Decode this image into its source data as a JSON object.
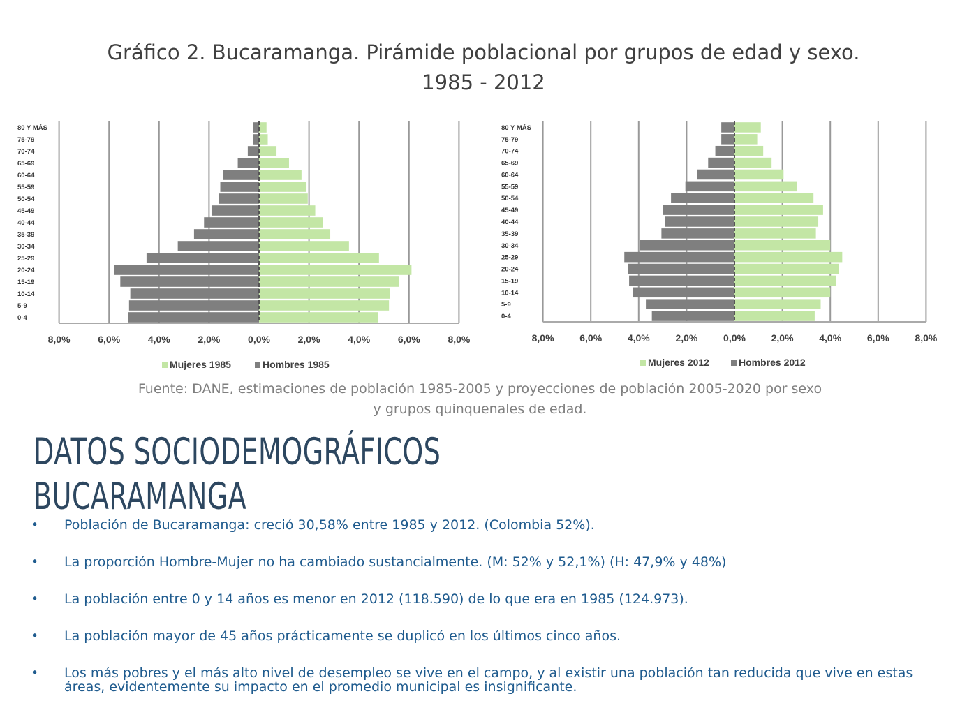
{
  "figure": {
    "title_line1": "Gráfico 2. Bucaramanga. Pirámide poblacional por grupos de edad y sexo.",
    "title_line2": "1985 - 2012",
    "source_line1": "Fuente: DANE, estimaciones de población 1985-2005  y proyecciones de población 2005-2020 por sexo",
    "source_line2": "y grupos quinquenales de edad."
  },
  "colors": {
    "female": "#c3e6a5",
    "male": "#7f7f7f",
    "grid": "#999999"
  },
  "chart_data": [
    {
      "type": "bar",
      "orientation": "horizontal-pyramid",
      "categories": [
        "80 Y MÁS",
        "75-79",
        "70-74",
        "65-69",
        "60-64",
        "55-59",
        "50-54",
        "45-49",
        "40-44",
        "35-39",
        "30-34",
        "25-29",
        "20-24",
        "15-19",
        "10-14",
        "5-9",
        "0-4"
      ],
      "tick_labels": [
        "8,0%",
        "6,0%",
        "4,0%",
        "2,0%",
        "0,0%",
        "2,0%",
        "4,0%",
        "6,0%",
        "8,0%"
      ],
      "xlim": [
        -8,
        8
      ],
      "legend_position": "bottom",
      "series": [
        {
          "name": "Mujeres 1985",
          "side": "right",
          "values": [
            0.3,
            0.35,
            0.7,
            1.2,
            1.7,
            1.9,
            1.95,
            2.25,
            2.55,
            2.85,
            3.6,
            4.8,
            6.1,
            5.6,
            5.25,
            5.2,
            4.75
          ]
        },
        {
          "name": "Hombres 1985",
          "side": "left",
          "values": [
            0.25,
            0.25,
            0.45,
            0.85,
            1.45,
            1.55,
            1.6,
            1.9,
            2.2,
            2.6,
            3.25,
            4.5,
            5.8,
            5.55,
            5.15,
            5.2,
            5.25
          ]
        }
      ]
    },
    {
      "type": "bar",
      "orientation": "horizontal-pyramid",
      "categories": [
        "80 Y MÁS",
        "75-79",
        "70-74",
        "65-69",
        "60-64",
        "55-59",
        "50-54",
        "45-49",
        "40-44",
        "35-39",
        "30-34",
        "25-29",
        "20-24",
        "15-19",
        "10-14",
        "5-9",
        "0-4"
      ],
      "tick_labels": [
        "8,0%",
        "6,0%",
        "4,0%",
        "2,0%",
        "0,0%",
        "2,0%",
        "4,0%",
        "6,0%",
        "8,0%"
      ],
      "xlim": [
        -8,
        8
      ],
      "legend_position": "bottom",
      "series": [
        {
          "name": "Mujeres 2012",
          "side": "right",
          "values": [
            1.1,
            0.95,
            1.2,
            1.55,
            2.05,
            2.6,
            3.3,
            3.7,
            3.5,
            3.4,
            4.0,
            4.5,
            4.35,
            4.25,
            4.0,
            3.6,
            3.35
          ]
        },
        {
          "name": "Hombres 2012",
          "side": "left",
          "values": [
            0.55,
            0.55,
            0.8,
            1.1,
            1.55,
            2.05,
            2.65,
            3.0,
            2.9,
            3.05,
            3.95,
            4.6,
            4.45,
            4.4,
            4.25,
            3.7,
            3.45
          ]
        }
      ]
    }
  ],
  "slide": {
    "headline_line1": "DATOS SOCIODEMOGRÁFICOS",
    "headline_line2": "BUCARAMANGA",
    "bullet_symbol": "•",
    "bullets": [
      "Población de Bucaramanga: creció 30,58% entre 1985 y 2012. (Colombia 52%).",
      "La proporción Hombre-Mujer no ha cambiado sustancialmente. (M: 52% y 52,1%) (H: 47,9% y 48%)",
      "La población entre 0 y 14 años es menor en 2012 (118.590) de lo que era en 1985 (124.973).",
      "La población mayor de 45 años prácticamente se duplicó en los últimos cinco años.",
      "Los más pobres y el más alto nivel de desempleo se vive en el campo, y al existir una población tan reducida que vive en estas áreas, evidentemente su impacto en el promedio municipal es insignificante."
    ]
  }
}
